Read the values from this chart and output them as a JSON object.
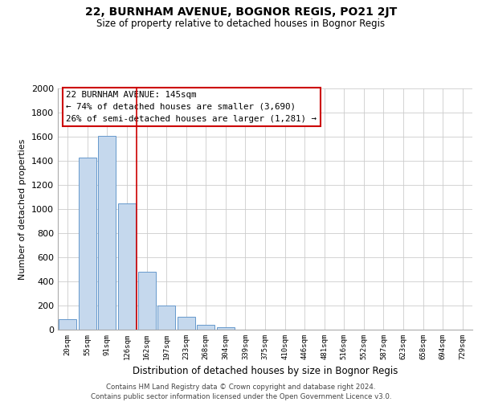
{
  "title": "22, BURNHAM AVENUE, BOGNOR REGIS, PO21 2JT",
  "subtitle": "Size of property relative to detached houses in Bognor Regis",
  "xlabel": "Distribution of detached houses by size in Bognor Regis",
  "ylabel": "Number of detached properties",
  "bar_labels": [
    "20sqm",
    "55sqm",
    "91sqm",
    "126sqm",
    "162sqm",
    "197sqm",
    "233sqm",
    "268sqm",
    "304sqm",
    "339sqm",
    "375sqm",
    "410sqm",
    "446sqm",
    "481sqm",
    "516sqm",
    "552sqm",
    "587sqm",
    "623sqm",
    "658sqm",
    "694sqm",
    "729sqm"
  ],
  "bar_values": [
    85,
    1430,
    1610,
    1050,
    480,
    200,
    105,
    40,
    20,
    0,
    0,
    0,
    0,
    0,
    0,
    0,
    0,
    0,
    0,
    0,
    0
  ],
  "bar_color": "#c5d8ed",
  "bar_edge_color": "#6699cc",
  "vline_x": 3.5,
  "vline_color": "#cc0000",
  "ylim": [
    0,
    2000
  ],
  "yticks": [
    0,
    200,
    400,
    600,
    800,
    1000,
    1200,
    1400,
    1600,
    1800,
    2000
  ],
  "annotation_title": "22 BURNHAM AVENUE: 145sqm",
  "annotation_line1": "← 74% of detached houses are smaller (3,690)",
  "annotation_line2": "26% of semi-detached houses are larger (1,281) →",
  "footer_line1": "Contains HM Land Registry data © Crown copyright and database right 2024.",
  "footer_line2": "Contains public sector information licensed under the Open Government Licence v3.0.",
  "bg_color": "#ffffff",
  "grid_color": "#cccccc"
}
